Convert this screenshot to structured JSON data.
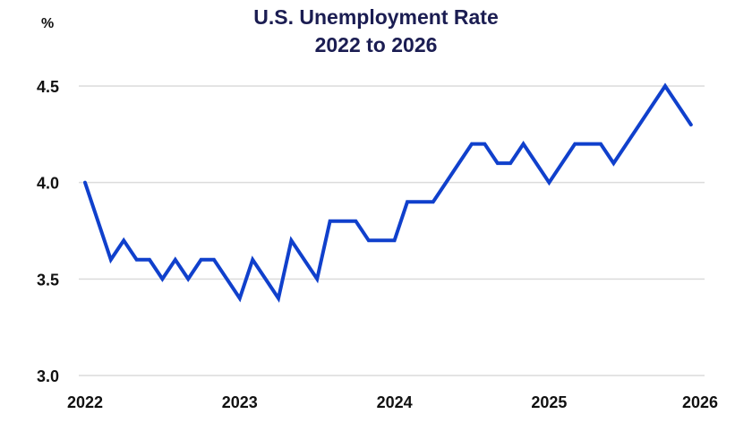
{
  "chart_data": {
    "type": "line",
    "title": "U.S. Unemployment Rate",
    "subtitle": "2022 to 2026",
    "xlabel": "",
    "ylabel": "%",
    "ylim": [
      3.0,
      4.5
    ],
    "yticks": [
      "3.0",
      "3.5",
      "4.0",
      "4.5"
    ],
    "xticks": [
      "2022",
      "2023",
      "2024",
      "2025",
      "2026"
    ],
    "grid": "horizontal",
    "legend": "none",
    "line_color": "#1040cc",
    "x_start": "2022-01",
    "x_frequency": "monthly",
    "series": [
      {
        "name": "U.S. Unemployment Rate",
        "values": [
          4.0,
          3.8,
          3.6,
          3.7,
          3.6,
          3.6,
          3.5,
          3.6,
          3.5,
          3.6,
          3.6,
          3.5,
          3.4,
          3.6,
          3.5,
          3.4,
          3.7,
          3.6,
          3.5,
          3.8,
          3.8,
          3.8,
          3.7,
          3.7,
          3.7,
          3.9,
          3.9,
          3.9,
          4.0,
          4.1,
          4.2,
          4.2,
          4.1,
          4.1,
          4.2,
          4.1,
          4.0,
          4.1,
          4.2,
          4.2,
          4.2,
          4.1,
          4.2,
          4.3,
          4.4,
          4.5,
          4.4,
          4.3
        ]
      }
    ]
  }
}
